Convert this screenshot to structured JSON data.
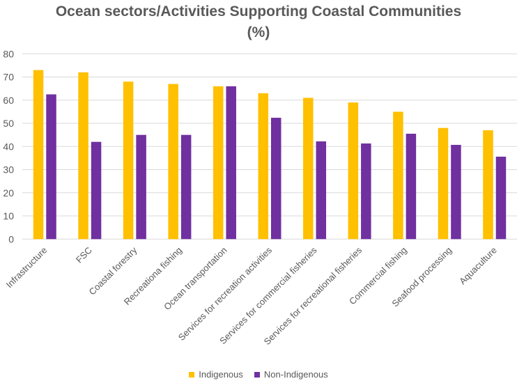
{
  "chart_data": {
    "type": "bar",
    "title_line1": "Ocean sectors/Activities Supporting Coastal Communities",
    "title_line2": "(%)",
    "xlabel": "",
    "ylabel": "",
    "ylim": [
      0,
      80
    ],
    "yticks": [
      0,
      10,
      20,
      30,
      40,
      50,
      60,
      70,
      80
    ],
    "grid": true,
    "legend_position": "bottom",
    "categories": [
      "Infrastructure",
      "FSC",
      "Coastal forestry",
      "Recreationa fishing",
      "Ocean transportation",
      "Services for recreation activities",
      "Services for commercial fisheries",
      "Services for recreational fisheries",
      "Commercial fishing",
      "Seafood processing",
      "Aquaculture"
    ],
    "series": [
      {
        "name": "Indigenous",
        "color": "#FFC000",
        "values": [
          73,
          72,
          68,
          67,
          66,
          63,
          61,
          59,
          55,
          48,
          47
        ]
      },
      {
        "name": "Non-Indigenous",
        "color": "#7030A0",
        "values": [
          62.5,
          42,
          45,
          45,
          66,
          52.4,
          42.2,
          41.3,
          45.5,
          40.7,
          35.6
        ]
      }
    ]
  }
}
